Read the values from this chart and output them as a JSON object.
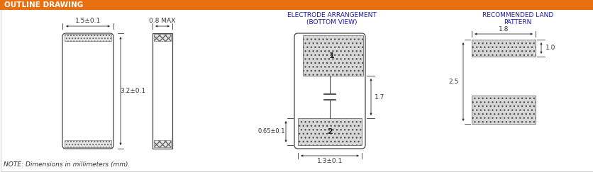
{
  "title": "OUTLINE DRAWING",
  "title_bg": "#E87010",
  "title_fg": "#FFFFFF",
  "bg_color": "#FFFFFF",
  "note": "NOTE: Dimensions in millimeters (mm).",
  "section2_title": "ELECTRODE ARRANGEMENT\n(BOTTOM VIEW)",
  "section3_title": "RECOMMENDED LAND\nPATTERN",
  "dim_color": "#333333",
  "line_color": "#333333",
  "hatch_dense": "xxxx",
  "fig_w": 8.36,
  "fig_h": 2.43,
  "dpi": 100
}
